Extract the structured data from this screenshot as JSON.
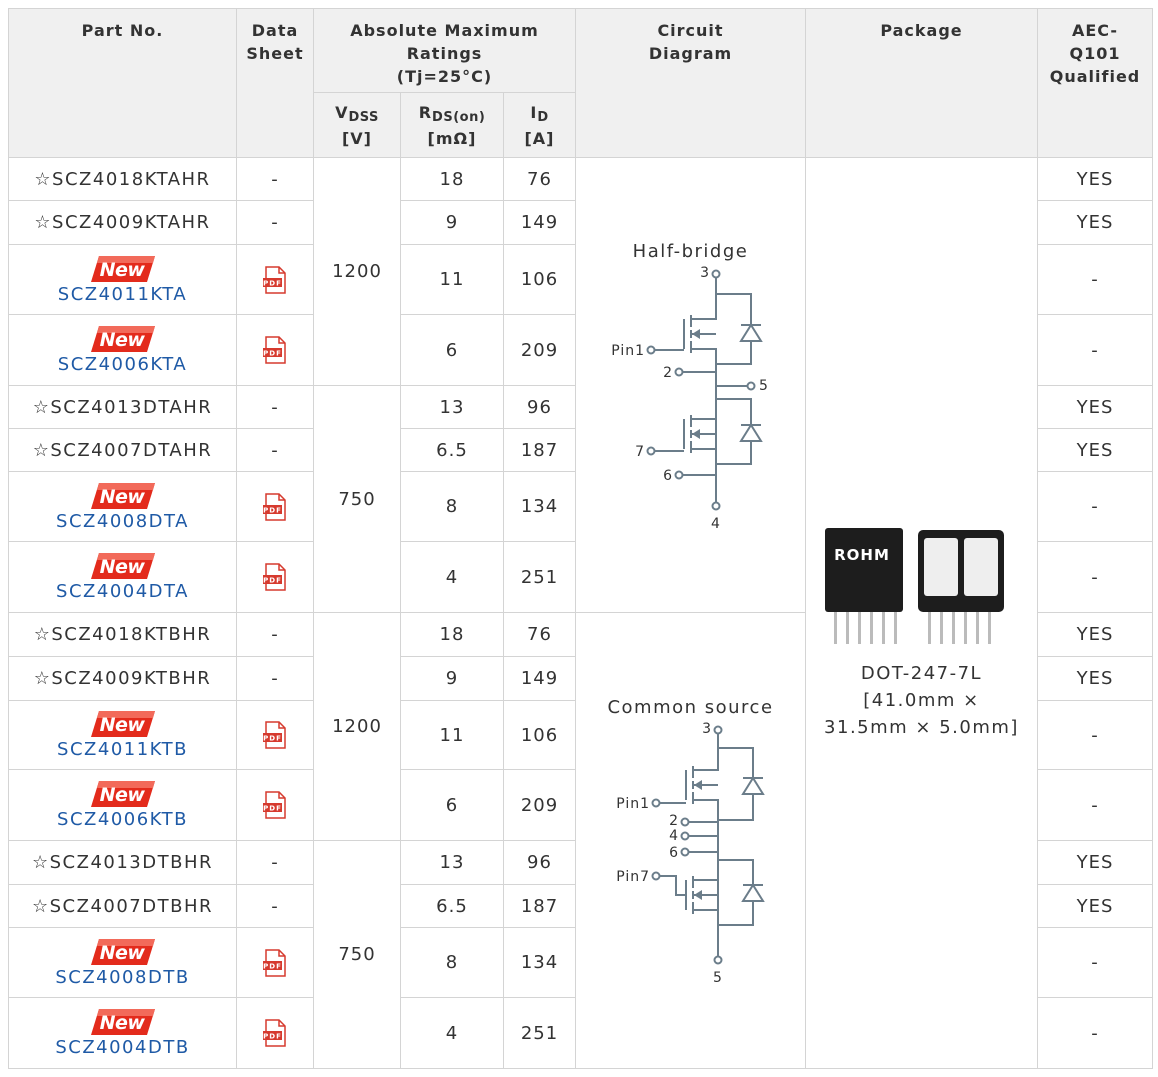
{
  "header": {
    "part_no": "Part No.",
    "data_sheet": [
      "Data",
      "Sheet"
    ],
    "ratings": [
      "Absolute Maximum",
      "Ratings",
      "(Tj=25°C)"
    ],
    "circuit": [
      "Circuit",
      "Diagram"
    ],
    "package": "Package",
    "aec": [
      "AEC-",
      "Q101",
      "Qualified"
    ],
    "vdss": {
      "symbol": "V",
      "sub": "DSS",
      "unit": "[V]"
    },
    "rds": {
      "symbol": "R",
      "sub": "DS(on)",
      "unit": "[mΩ]"
    },
    "id": {
      "symbol": "I",
      "sub": "D",
      "unit": "[A]"
    }
  },
  "package": {
    "logo": "ROHM",
    "lines": [
      "DOT-247-7L",
      "[41.0mm ×",
      "31.5mm × 5.0mm]"
    ]
  },
  "groups": [
    {
      "circuit": {
        "title": "Half-bridge",
        "pins": [
          "3",
          "Pin1",
          "2",
          "5",
          "7",
          "6",
          "4"
        ]
      },
      "subgroups": [
        {
          "vdss": 1200,
          "rows": [
            {
              "part": "☆SCZ4018KTAHR",
              "datasheet": "-",
              "rds": 18,
              "id": 76,
              "aec": "YES"
            },
            {
              "part": "☆SCZ4009KTAHR",
              "datasheet": "-",
              "rds": 9,
              "id": 149,
              "aec": "YES"
            },
            {
              "badge": "New",
              "part": "SCZ4011KTA",
              "datasheet": "PDF",
              "rds": 11,
              "id": 106,
              "aec": "-"
            },
            {
              "badge": "New",
              "part": "SCZ4006KTA",
              "datasheet": "PDF",
              "rds": 6,
              "id": 209,
              "aec": "-"
            }
          ]
        },
        {
          "vdss": 750,
          "rows": [
            {
              "part": "☆SCZ4013DTAHR",
              "datasheet": "-",
              "rds": 13,
              "id": 96,
              "aec": "YES"
            },
            {
              "part": "☆SCZ4007DTAHR",
              "datasheet": "-",
              "rds": 6.5,
              "id": 187,
              "aec": "YES"
            },
            {
              "badge": "New",
              "part": "SCZ4008DTA",
              "datasheet": "PDF",
              "rds": 8,
              "id": 134,
              "aec": "-"
            },
            {
              "badge": "New",
              "part": "SCZ4004DTA",
              "datasheet": "PDF",
              "rds": 4,
              "id": 251,
              "aec": "-"
            }
          ]
        }
      ]
    },
    {
      "circuit": {
        "title": "Common source",
        "pins": [
          "3",
          "Pin1",
          "2",
          "4",
          "6",
          "Pin7",
          "5"
        ]
      },
      "subgroups": [
        {
          "vdss": 1200,
          "rows": [
            {
              "part": "☆SCZ4018KTBHR",
              "datasheet": "-",
              "rds": 18,
              "id": 76,
              "aec": "YES"
            },
            {
              "part": "☆SCZ4009KTBHR",
              "datasheet": "-",
              "rds": 9,
              "id": 149,
              "aec": "YES"
            },
            {
              "badge": "New",
              "part": "SCZ4011KTB",
              "datasheet": "PDF",
              "rds": 11,
              "id": 106,
              "aec": "-"
            },
            {
              "badge": "New",
              "part": "SCZ4006KTB",
              "datasheet": "PDF",
              "rds": 6,
              "id": 209,
              "aec": "-"
            }
          ]
        },
        {
          "vdss": 750,
          "rows": [
            {
              "part": "☆SCZ4013DTBHR",
              "datasheet": "-",
              "rds": 13,
              "id": 96,
              "aec": "YES"
            },
            {
              "part": "☆SCZ4007DTBHR",
              "datasheet": "-",
              "rds": 6.5,
              "id": 187,
              "aec": "YES"
            },
            {
              "badge": "New",
              "part": "SCZ4008DTB",
              "datasheet": "PDF",
              "rds": 8,
              "id": 134,
              "aec": "-"
            },
            {
              "badge": "New",
              "part": "SCZ4004DTB",
              "datasheet": "PDF",
              "rds": 4,
              "id": 251,
              "aec": "-"
            }
          ]
        }
      ]
    }
  ]
}
